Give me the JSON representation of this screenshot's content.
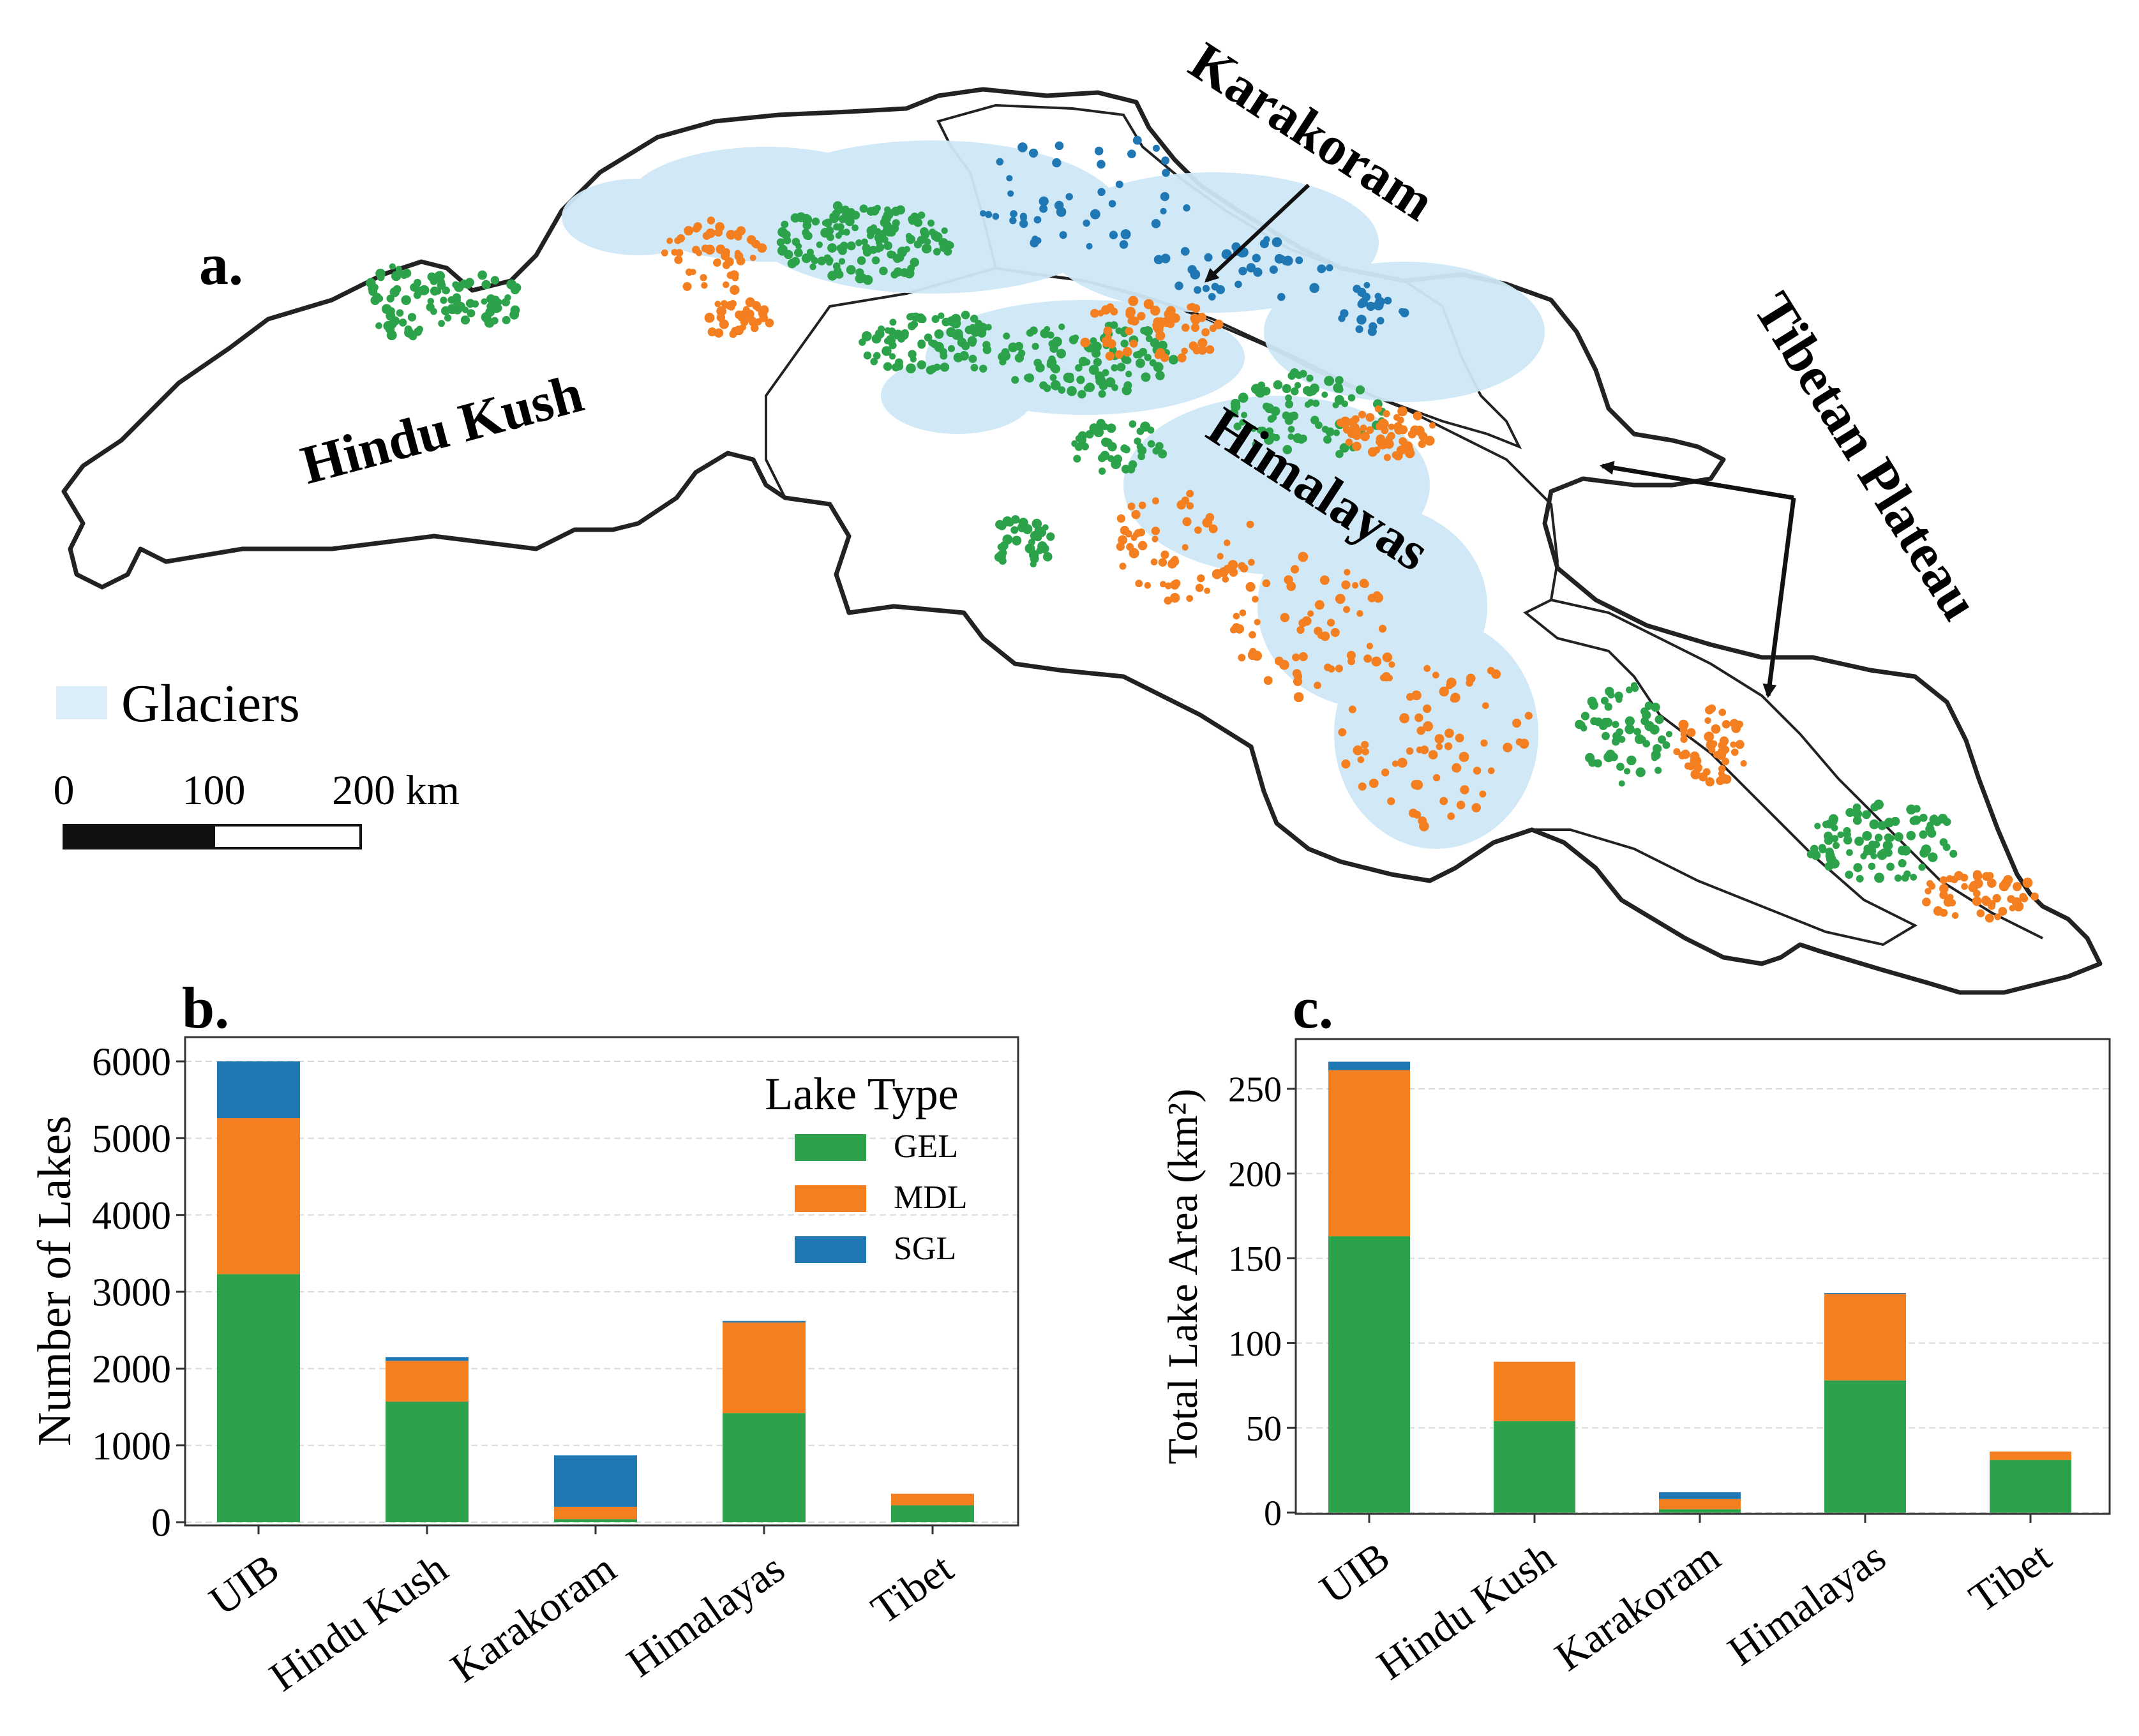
{
  "panels": {
    "a": "a.",
    "b": "b.",
    "c": "c."
  },
  "map": {
    "regions": {
      "hindu_kush": "Hindu Kush",
      "karakoram": "Karakoram",
      "himalayas": "Himalayas",
      "tibetan_plateau": "Tibetan Plateau"
    },
    "legend": {
      "glaciers": "Glaciers"
    },
    "scale_bar": {
      "ticks": [
        "0",
        "100",
        "200 km"
      ]
    }
  },
  "colors": {
    "GEL": "#2ca24a",
    "MDL": "#f47f20",
    "SGL": "#1f77b4",
    "glacier": "#cfe8f7",
    "boundary": "#222222"
  },
  "chart_data": [
    {
      "type": "bar",
      "stacked": true,
      "categories": [
        "UIB",
        "Hindu Kush",
        "Karakoram",
        "Himalayas",
        "Tibet"
      ],
      "series": [
        {
          "name": "GEL",
          "values": [
            3230,
            1570,
            40,
            1420,
            220
          ]
        },
        {
          "name": "MDL",
          "values": [
            2030,
            530,
            160,
            1180,
            150
          ]
        },
        {
          "name": "SGL",
          "values": [
            740,
            50,
            670,
            20,
            0
          ]
        }
      ],
      "ylabel": "Number of Lakes",
      "ylim": [
        0,
        6300
      ],
      "yticks": [
        0,
        1000,
        2000,
        3000,
        4000,
        5000,
        6000
      ],
      "legend_title": "Lake Type",
      "legend_position": "top-right",
      "grid": true
    },
    {
      "type": "bar",
      "stacked": true,
      "categories": [
        "UIB",
        "Hindu Kush",
        "Karakoram",
        "Himalayas",
        "Tibet"
      ],
      "series": [
        {
          "name": "GEL",
          "values": [
            163,
            54,
            2,
            78,
            31
          ]
        },
        {
          "name": "MDL",
          "values": [
            98,
            35,
            6,
            51,
            5
          ]
        },
        {
          "name": "SGL",
          "values": [
            5,
            0,
            4,
            0.5,
            0
          ]
        }
      ],
      "ylabel": "Total Lake Area (km²)",
      "ylim": [
        0,
        275
      ],
      "yticks": [
        0,
        50,
        100,
        150,
        200,
        250
      ],
      "grid": true
    }
  ]
}
